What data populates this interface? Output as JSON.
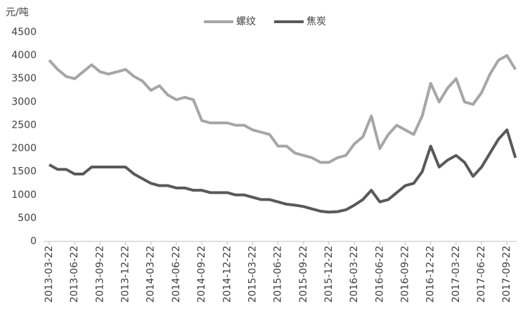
{
  "chart_data": {
    "type": "line",
    "y_label": "元/吨",
    "categories": [
      "2013-03-22",
      null,
      null,
      "2013-06-22",
      null,
      null,
      "2013-09-22",
      null,
      null,
      "2013-12-22",
      null,
      null,
      "2014-03-22",
      null,
      null,
      "2014-06-22",
      null,
      null,
      "2014-09-22",
      null,
      null,
      "2014-12-22",
      null,
      null,
      "2015-03-22",
      null,
      null,
      "2015-06-22",
      null,
      null,
      "2015-09-22",
      null,
      null,
      "2015-12-22",
      null,
      null,
      "2016-03-22",
      null,
      null,
      "2016-06-22",
      null,
      null,
      "2016-09-22",
      null,
      null,
      "2016-12-22",
      null,
      null,
      "2017-03-22",
      null,
      null,
      "2017-06-22",
      null,
      null,
      "2017-09-22",
      null
    ],
    "series": [
      {
        "name": "螺纹",
        "color": "#a6a6a6",
        "values": [
          3900,
          3700,
          3550,
          3500,
          3650,
          3800,
          3650,
          3600,
          3650,
          3700,
          3550,
          3450,
          3250,
          3350,
          3150,
          3050,
          3100,
          3050,
          2600,
          2550,
          2550,
          2550,
          2500,
          2500,
          2400,
          2350,
          2300,
          2050,
          2050,
          1900,
          1850,
          1800,
          1700,
          1700,
          1800,
          1850,
          2100,
          2250,
          2700,
          2000,
          2300,
          2500,
          2400,
          2300,
          2700,
          3400,
          3000,
          3300,
          3500,
          3000,
          2950,
          3200,
          3600,
          3900,
          4000,
          3700
        ]
      },
      {
        "name": "焦炭",
        "color": "#595959",
        "values": [
          1650,
          1550,
          1550,
          1450,
          1450,
          1600,
          1600,
          1600,
          1600,
          1600,
          1450,
          1350,
          1250,
          1200,
          1200,
          1150,
          1150,
          1100,
          1100,
          1050,
          1050,
          1050,
          1000,
          1000,
          950,
          900,
          900,
          850,
          800,
          780,
          750,
          700,
          650,
          630,
          640,
          680,
          780,
          900,
          1100,
          850,
          900,
          1050,
          1200,
          1250,
          1500,
          2050,
          1600,
          1750,
          1850,
          1700,
          1400,
          1600,
          1900,
          2200,
          2400,
          1800
        ]
      }
    ],
    "ylim": [
      0,
      4500
    ],
    "yticks": [
      0,
      500,
      1000,
      1500,
      2000,
      2500,
      3000,
      3500,
      4000,
      4500
    ],
    "grid": false
  }
}
